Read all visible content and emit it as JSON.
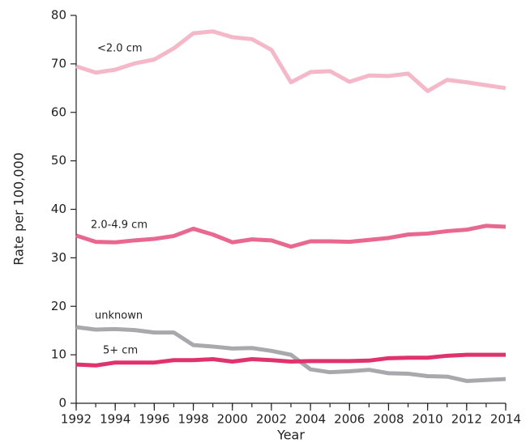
{
  "chart_data": {
    "type": "line",
    "x": [
      1992,
      1993,
      1994,
      1995,
      1996,
      1997,
      1998,
      1999,
      2000,
      2001,
      2002,
      2003,
      2004,
      2005,
      2006,
      2007,
      2008,
      2009,
      2010,
      2011,
      2012,
      2013,
      2014
    ],
    "xlabel": "Year",
    "ylabel": "Rate per 100,000",
    "xlim": [
      1992,
      2014
    ],
    "xticks": [
      1992,
      1994,
      1996,
      1998,
      2000,
      2002,
      2004,
      2006,
      2008,
      2010,
      2012,
      2014
    ],
    "ylim": [
      0,
      80
    ],
    "yticks": [
      0,
      10,
      20,
      30,
      40,
      50,
      60,
      70,
      80
    ],
    "series": [
      {
        "name": "<2.0 cm",
        "color": "#f4b8c8",
        "values": [
          69.5,
          68.2,
          68.8,
          70.1,
          70.9,
          73.2,
          76.3,
          76.7,
          75.5,
          75.1,
          72.9,
          66.2,
          68.3,
          68.5,
          66.3,
          67.6,
          67.5,
          68.0,
          64.4,
          66.7,
          66.2,
          65.6,
          65.0
        ]
      },
      {
        "name": "2.0-4.9 cm",
        "color": "#e8688f",
        "values": [
          34.6,
          33.3,
          33.2,
          33.6,
          33.9,
          34.5,
          36.0,
          34.8,
          33.2,
          33.8,
          33.6,
          32.3,
          33.4,
          33.4,
          33.3,
          33.7,
          34.1,
          34.8,
          35.0,
          35.5,
          35.8,
          36.6,
          36.4
        ]
      },
      {
        "name": "unknown",
        "color": "#a8a8ad",
        "values": [
          15.7,
          15.2,
          15.3,
          15.1,
          14.6,
          14.6,
          12.0,
          11.7,
          11.3,
          11.4,
          10.8,
          10.0,
          7.0,
          6.4,
          6.6,
          6.9,
          6.2,
          6.1,
          5.6,
          5.5,
          4.6,
          4.8,
          5.0
        ]
      },
      {
        "name": "5+ cm",
        "color": "#e0336e",
        "values": [
          8.0,
          7.8,
          8.4,
          8.4,
          8.4,
          8.9,
          8.9,
          9.1,
          8.6,
          9.1,
          8.9,
          8.6,
          8.7,
          8.7,
          8.7,
          8.8,
          9.3,
          9.4,
          9.4,
          9.8,
          10.0,
          10.0,
          10.0
        ]
      }
    ]
  }
}
